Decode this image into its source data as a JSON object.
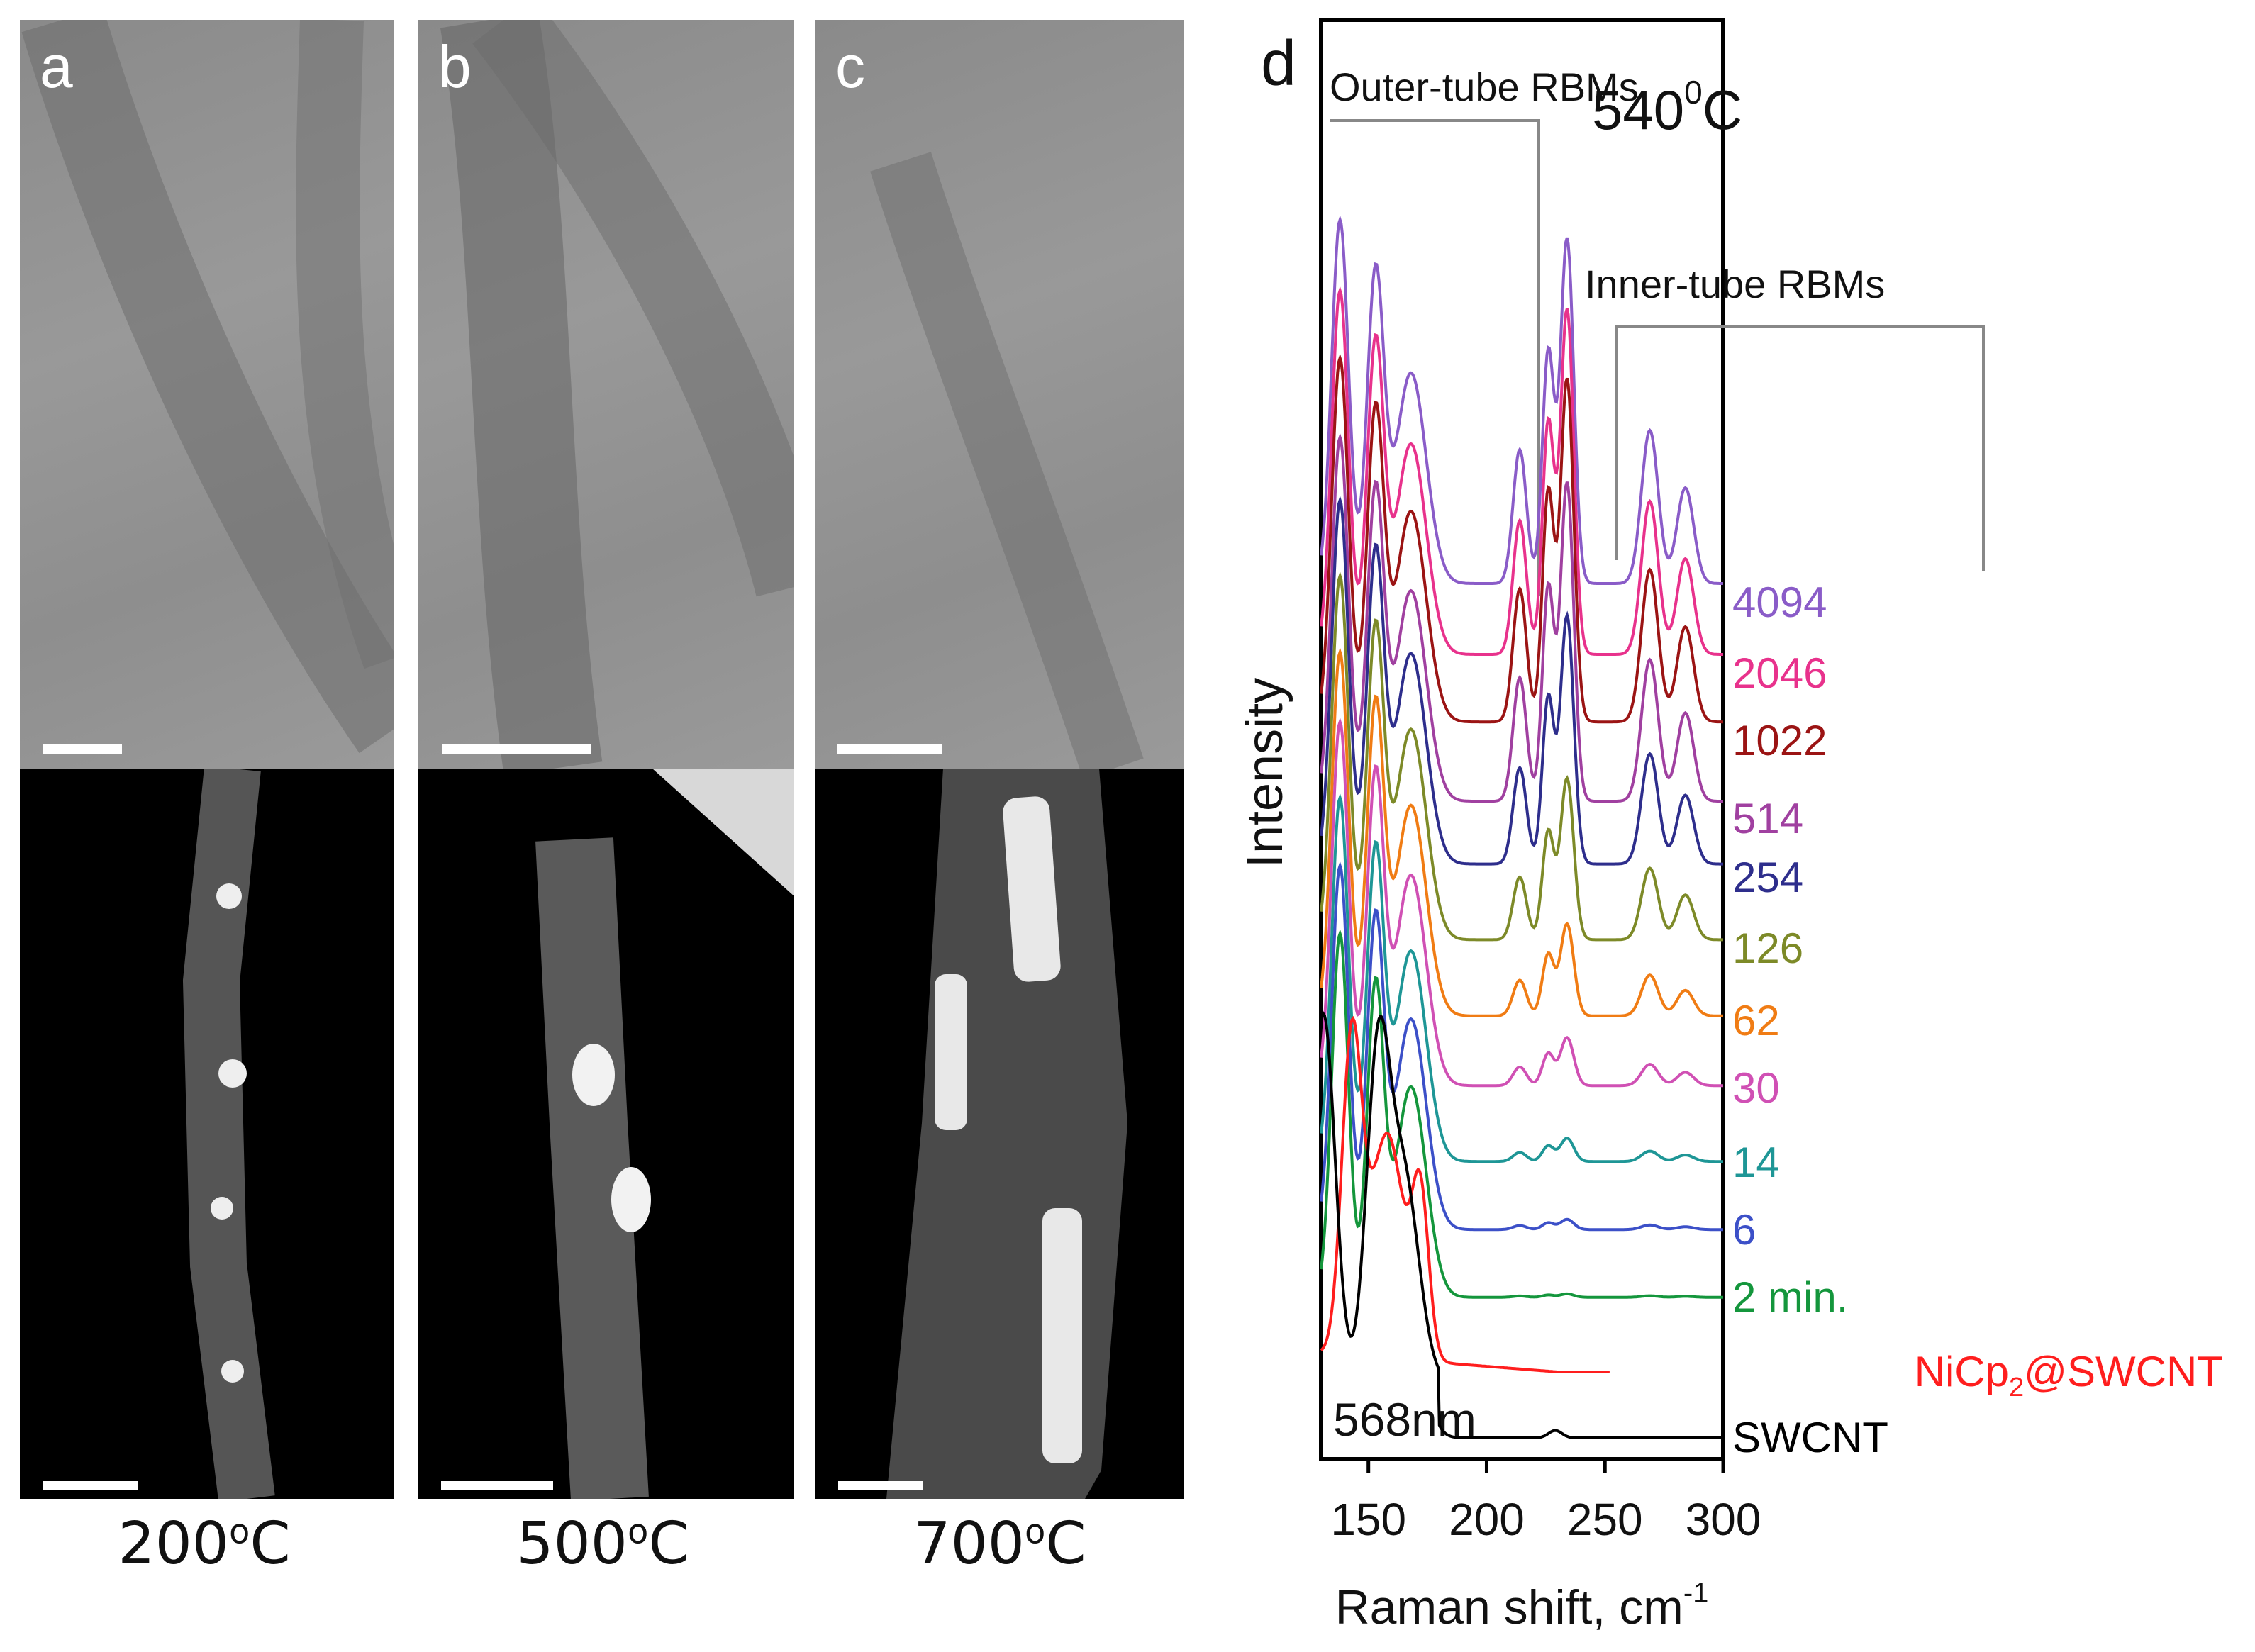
{
  "tem_panels": [
    {
      "letter": "a",
      "temperature": "200",
      "unit": "C",
      "deg": "o"
    },
    {
      "letter": "b",
      "temperature": "500",
      "unit": "C",
      "deg": "o"
    },
    {
      "letter": "c",
      "temperature": "700",
      "unit": "C",
      "deg": "o"
    }
  ],
  "chart_data": {
    "type": "line",
    "panel_letter": "d",
    "temperature_text": "540",
    "temperature_sup": "0",
    "temperature_unit": "C",
    "wavelength": "568nm",
    "xlabel": "Raman shift, cm",
    "xlabel_sup": "-1",
    "ylabel": "Intensity",
    "xlim": [
      130,
      300
    ],
    "xticks": [
      150,
      200,
      250,
      300
    ],
    "annotations": {
      "outer": "Outer-tube RBMs",
      "inner": "Inner-tube RBMs"
    },
    "series": [
      {
        "name": "4094",
        "color": "#8a5cc8"
      },
      {
        "name": "2046",
        "color": "#e8328c"
      },
      {
        "name": "1022",
        "color": "#9b1414"
      },
      {
        "name": "514",
        "color": "#a040a0"
      },
      {
        "name": "254",
        "color": "#2e2e8c"
      },
      {
        "name": "126",
        "color": "#7d8a28"
      },
      {
        "name": "62",
        "color": "#f07c14"
      },
      {
        "name": "30",
        "color": "#d050b4"
      },
      {
        "name": "14",
        "color": "#1e9696"
      },
      {
        "name": "6",
        "color": "#3c50c8"
      },
      {
        "name": "2 min.",
        "color": "#14963c"
      },
      {
        "name": "NiCp",
        "name_sub": "2",
        "name_tail": "@SWCNT",
        "color": "#ff1e1e"
      },
      {
        "name": "SWCNT",
        "color": "#000000"
      }
    ]
  }
}
